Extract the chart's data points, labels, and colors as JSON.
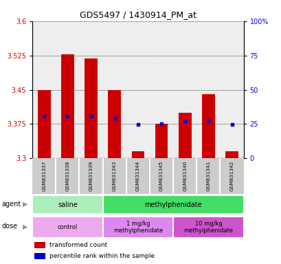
{
  "title": "GDS5497 / 1430914_PM_at",
  "samples": [
    "GSM831337",
    "GSM831338",
    "GSM831339",
    "GSM831343",
    "GSM831344",
    "GSM831345",
    "GSM831340",
    "GSM831341",
    "GSM831342"
  ],
  "bar_bottoms": [
    3.3,
    3.3,
    3.3,
    3.3,
    3.3,
    3.3,
    3.3,
    3.3,
    3.3
  ],
  "bar_tops": [
    3.45,
    3.527,
    3.518,
    3.45,
    3.315,
    3.375,
    3.4,
    3.44,
    3.315
  ],
  "percentile_values": [
    3.392,
    3.392,
    3.392,
    3.387,
    3.374,
    3.376,
    3.382,
    3.382,
    3.374
  ],
  "ylim_left": [
    3.3,
    3.6
  ],
  "yticks_left": [
    3.3,
    3.375,
    3.45,
    3.525,
    3.6
  ],
  "ylim_right": [
    0,
    100
  ],
  "yticks_right": [
    0,
    25,
    50,
    75,
    100
  ],
  "ytick_labels_right": [
    "0",
    "25",
    "50",
    "75",
    "100%"
  ],
  "bar_color": "#cc0000",
  "percentile_color": "#0000cc",
  "bar_width": 0.55,
  "agent_groups": [
    {
      "label": "saline",
      "start": 0,
      "end": 3,
      "color": "#aaeebb"
    },
    {
      "label": "methylphenidate",
      "start": 3,
      "end": 9,
      "color": "#44dd66"
    }
  ],
  "dose_groups": [
    {
      "label": "control",
      "start": 0,
      "end": 3,
      "color": "#eeaaee"
    },
    {
      "label": "1 mg/kg\nmethylphenidate",
      "start": 3,
      "end": 6,
      "color": "#dd88ee"
    },
    {
      "label": "10 mg/kg\nmethylphenidate",
      "start": 6,
      "end": 9,
      "color": "#cc55cc"
    }
  ],
  "legend_items": [
    {
      "color": "#cc0000",
      "label": "transformed count"
    },
    {
      "color": "#0000cc",
      "label": "percentile rank within the sample"
    }
  ],
  "axis_label_color_left": "#cc0000",
  "axis_label_color_right": "#0000cc",
  "sample_bg_color": "#cccccc"
}
